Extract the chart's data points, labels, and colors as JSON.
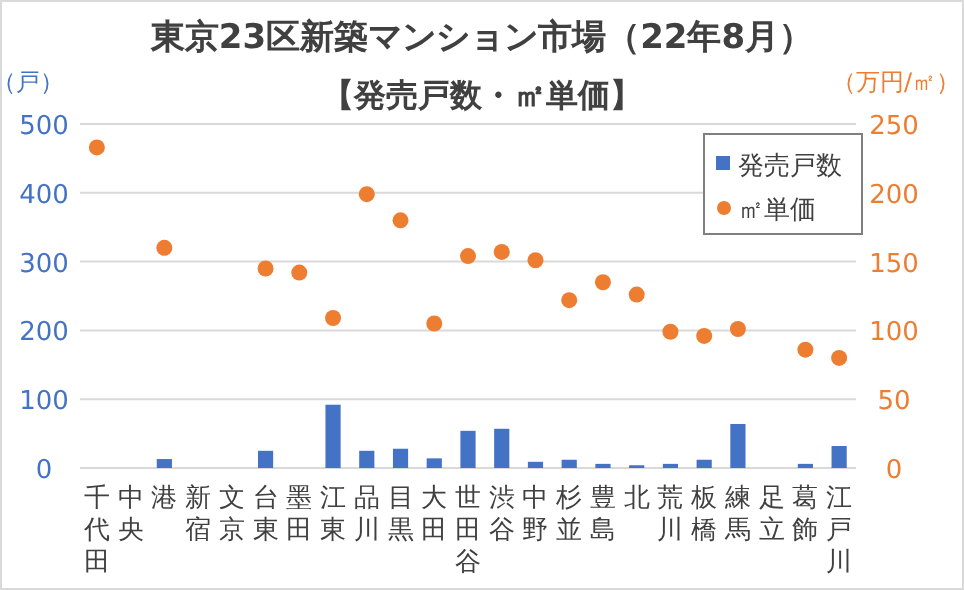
{
  "chart_data": {
    "type": "bar",
    "title": "東京23区新築マンション市場（22年8月）",
    "subtitle": "【発売戸数・㎡単価】",
    "ylabel": "（戸）",
    "y2label": "（万円/㎡）",
    "categories": [
      "千代田",
      "中央",
      "港",
      "新宿",
      "文京",
      "台東",
      "墨田",
      "江東",
      "品川",
      "目黒",
      "大田",
      "世田谷",
      "渋谷",
      "中野",
      "杉並",
      "豊島",
      "北",
      "荒川",
      "板橋",
      "練馬",
      "足立",
      "葛飾",
      "江戸川"
    ],
    "series": [
      {
        "name": "発売戸数",
        "color": "#4472c4",
        "values": [
          null,
          null,
          13,
          null,
          null,
          25,
          null,
          92,
          25,
          28,
          14,
          54,
          57,
          9,
          12,
          6,
          4,
          6,
          12,
          64,
          null,
          6,
          32
        ]
      },
      {
        "name": "㎡単価",
        "type": "scatter",
        "axis": "y2",
        "marker": "circle",
        "color": "#ed7d31",
        "values": [
          233,
          null,
          160,
          null,
          null,
          145,
          142,
          109,
          199,
          180,
          105,
          154,
          157,
          151,
          122,
          135,
          126,
          99,
          96,
          101,
          null,
          86,
          80
        ]
      }
    ],
    "ylim": [
      0,
      500
    ],
    "yticks": [
      0,
      100,
      200,
      300,
      400,
      500
    ],
    "y2lim": [
      0,
      250
    ],
    "y2ticks": [
      0,
      50,
      100,
      150,
      200,
      250
    ],
    "grid": "y",
    "legend": "top right"
  }
}
